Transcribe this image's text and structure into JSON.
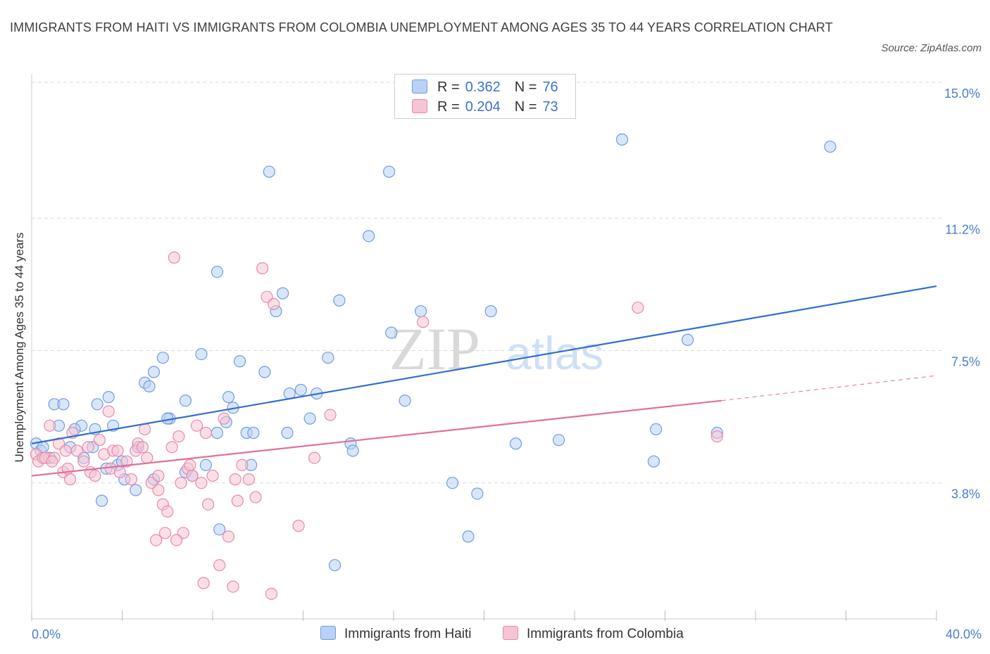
{
  "title": "IMMIGRANTS FROM HAITI VS IMMIGRANTS FROM COLOMBIA UNEMPLOYMENT AMONG AGES 35 TO 44 YEARS CORRELATION CHART",
  "source": "Source: ZipAtlas.com",
  "watermark": {
    "zip": "ZIP",
    "atlas": "atlas"
  },
  "legend": {
    "rows": [
      {
        "r_label": "R =",
        "r_value": "0.362",
        "n_label": "N =",
        "n_value": "76"
      },
      {
        "r_label": "R =",
        "r_value": "0.204",
        "n_label": "N =",
        "n_value": "73"
      }
    ]
  },
  "bottom_legend": [
    "Immigrants from Haiti",
    "Immigrants from Colombia"
  ],
  "colors": {
    "haiti_fill": "#b9d2f5",
    "haiti_stroke": "#6f9de0",
    "haiti_line": "#2f6fcf",
    "colombia_fill": "#f7c4d3",
    "colombia_stroke": "#e88aa8",
    "colombia_line": "#e0709a",
    "grid": "#d9d9d9",
    "tick_text": "#4a7ecb"
  },
  "chart_data": {
    "type": "scatter",
    "title": "IMMIGRANTS FROM HAITI VS IMMIGRANTS FROM COLOMBIA UNEMPLOYMENT AMONG AGES 35 TO 44 YEARS CORRELATION CHART",
    "xlabel": "",
    "ylabel": "Unemployment Among Ages 35 to 44 years",
    "xlim": [
      0,
      40
    ],
    "ylim": [
      0,
      15
    ],
    "x_tick_labels": [
      "0.0%",
      "40.0%"
    ],
    "y_ticks": [
      3.8,
      7.5,
      11.2,
      15.0
    ],
    "y_tick_labels": [
      "3.8%",
      "7.5%",
      "11.2%",
      "15.0%"
    ],
    "grid": true,
    "legend_position": "top-center",
    "series": [
      {
        "name": "Immigrants from Haiti",
        "r": 0.362,
        "n": 76,
        "trend": {
          "x": [
            0,
            40
          ],
          "y": [
            4.9,
            9.3
          ]
        },
        "points": [
          [
            0.2,
            4.9
          ],
          [
            0.4,
            4.7
          ],
          [
            0.5,
            4.8
          ],
          [
            0.8,
            4.5
          ],
          [
            1.0,
            6.0
          ],
          [
            1.2,
            5.4
          ],
          [
            1.4,
            6.0
          ],
          [
            1.7,
            4.8
          ],
          [
            2.2,
            5.4
          ],
          [
            1.9,
            5.3
          ],
          [
            2.8,
            5.3
          ],
          [
            2.9,
            6.0
          ],
          [
            3.3,
            4.2
          ],
          [
            3.4,
            6.2
          ],
          [
            3.8,
            4.3
          ],
          [
            3.1,
            3.3
          ],
          [
            3.6,
            5.4
          ],
          [
            4.1,
            3.9
          ],
          [
            4.6,
            3.6
          ],
          [
            4.7,
            4.8
          ],
          [
            5.0,
            6.6
          ],
          [
            5.2,
            6.5
          ],
          [
            5.4,
            6.9
          ],
          [
            5.8,
            7.3
          ],
          [
            6.1,
            5.6
          ],
          [
            6.8,
            6.1
          ],
          [
            7.5,
            7.4
          ],
          [
            7.7,
            4.3
          ],
          [
            8.2,
            5.2
          ],
          [
            7.1,
            4.0
          ],
          [
            8.7,
            6.2
          ],
          [
            8.6,
            5.5
          ],
          [
            8.9,
            5.9
          ],
          [
            9.2,
            7.2
          ],
          [
            9.5,
            5.2
          ],
          [
            9.7,
            4.3
          ],
          [
            10.3,
            6.9
          ],
          [
            11.4,
            6.3
          ],
          [
            11.1,
            9.1
          ],
          [
            10.8,
            8.6
          ],
          [
            11.9,
            6.4
          ],
          [
            12.3,
            5.6
          ],
          [
            13.1,
            7.3
          ],
          [
            13.4,
            1.5
          ],
          [
            13.6,
            8.9
          ],
          [
            14.1,
            4.9
          ],
          [
            14.2,
            4.7
          ],
          [
            15.9,
            8.0
          ],
          [
            16.5,
            6.1
          ],
          [
            17.2,
            8.6
          ],
          [
            18.6,
            3.8
          ],
          [
            19.3,
            2.3
          ],
          [
            19.7,
            3.5
          ],
          [
            20.3,
            8.6
          ],
          [
            21.4,
            4.9
          ],
          [
            23.3,
            5.0
          ],
          [
            26.1,
            13.4
          ],
          [
            27.5,
            4.4
          ],
          [
            27.6,
            5.3
          ],
          [
            29.0,
            7.8
          ],
          [
            30.3,
            5.2
          ],
          [
            35.3,
            13.2
          ],
          [
            4.0,
            4.4
          ],
          [
            10.5,
            12.5
          ],
          [
            15.8,
            12.5
          ],
          [
            14.9,
            10.7
          ],
          [
            8.2,
            9.7
          ],
          [
            2.7,
            4.8
          ],
          [
            6.8,
            4.1
          ],
          [
            5.4,
            3.9
          ],
          [
            9.8,
            5.2
          ],
          [
            2.3,
            4.5
          ],
          [
            8.3,
            2.5
          ],
          [
            12.6,
            6.3
          ],
          [
            11.3,
            5.2
          ],
          [
            6.0,
            5.6
          ]
        ]
      },
      {
        "name": "Immigrants from Colombia",
        "r": 0.204,
        "n": 73,
        "trend": {
          "x": [
            0,
            30.5
          ],
          "y": [
            4.0,
            6.1
          ]
        },
        "trend_dashed": {
          "x": [
            30.5,
            40
          ],
          "y": [
            6.1,
            6.8
          ]
        },
        "points": [
          [
            0.2,
            4.6
          ],
          [
            0.3,
            4.4
          ],
          [
            0.5,
            4.5
          ],
          [
            0.6,
            4.5
          ],
          [
            0.8,
            5.4
          ],
          [
            1.0,
            4.5
          ],
          [
            1.2,
            4.9
          ],
          [
            1.4,
            4.1
          ],
          [
            1.6,
            4.2
          ],
          [
            1.7,
            3.9
          ],
          [
            2.0,
            4.7
          ],
          [
            2.3,
            4.4
          ],
          [
            2.6,
            4.1
          ],
          [
            2.8,
            4.0
          ],
          [
            3.0,
            5.0
          ],
          [
            3.2,
            4.6
          ],
          [
            3.4,
            5.8
          ],
          [
            3.6,
            4.7
          ],
          [
            3.8,
            4.7
          ],
          [
            4.2,
            4.4
          ],
          [
            4.4,
            3.9
          ],
          [
            4.7,
            4.9
          ],
          [
            5.0,
            5.3
          ],
          [
            5.1,
            4.5
          ],
          [
            5.3,
            3.8
          ],
          [
            5.6,
            3.6
          ],
          [
            5.8,
            3.2
          ],
          [
            6.0,
            3.0
          ],
          [
            6.2,
            4.8
          ],
          [
            6.5,
            5.1
          ],
          [
            6.7,
            2.4
          ],
          [
            6.9,
            4.2
          ],
          [
            7.1,
            4.0
          ],
          [
            7.3,
            5.4
          ],
          [
            7.5,
            3.8
          ],
          [
            7.6,
            1.0
          ],
          [
            7.8,
            3.2
          ],
          [
            8.0,
            4.0
          ],
          [
            8.3,
            1.5
          ],
          [
            8.5,
            5.6
          ],
          [
            8.7,
            2.3
          ],
          [
            8.9,
            0.9
          ],
          [
            9.1,
            3.3
          ],
          [
            9.3,
            4.3
          ],
          [
            9.6,
            3.9
          ],
          [
            9.9,
            3.4
          ],
          [
            10.4,
            9.0
          ],
          [
            10.7,
            8.8
          ],
          [
            11.8,
            2.6
          ],
          [
            12.5,
            4.5
          ],
          [
            13.2,
            5.7
          ],
          [
            17.3,
            8.3
          ],
          [
            26.8,
            8.7
          ],
          [
            30.3,
            5.1
          ],
          [
            6.3,
            10.1
          ],
          [
            10.2,
            9.8
          ],
          [
            5.5,
            2.2
          ],
          [
            5.9,
            2.4
          ],
          [
            6.4,
            2.2
          ],
          [
            10.6,
            0.7
          ],
          [
            1.5,
            4.7
          ],
          [
            2.5,
            4.8
          ],
          [
            4.6,
            4.7
          ],
          [
            3.5,
            4.2
          ],
          [
            5.6,
            4.0
          ],
          [
            7.0,
            4.3
          ],
          [
            6.6,
            3.8
          ],
          [
            1.8,
            5.2
          ],
          [
            0.9,
            4.4
          ],
          [
            4.9,
            4.8
          ],
          [
            9.0,
            3.9
          ],
          [
            7.7,
            5.2
          ],
          [
            3.9,
            4.1
          ]
        ]
      }
    ]
  }
}
